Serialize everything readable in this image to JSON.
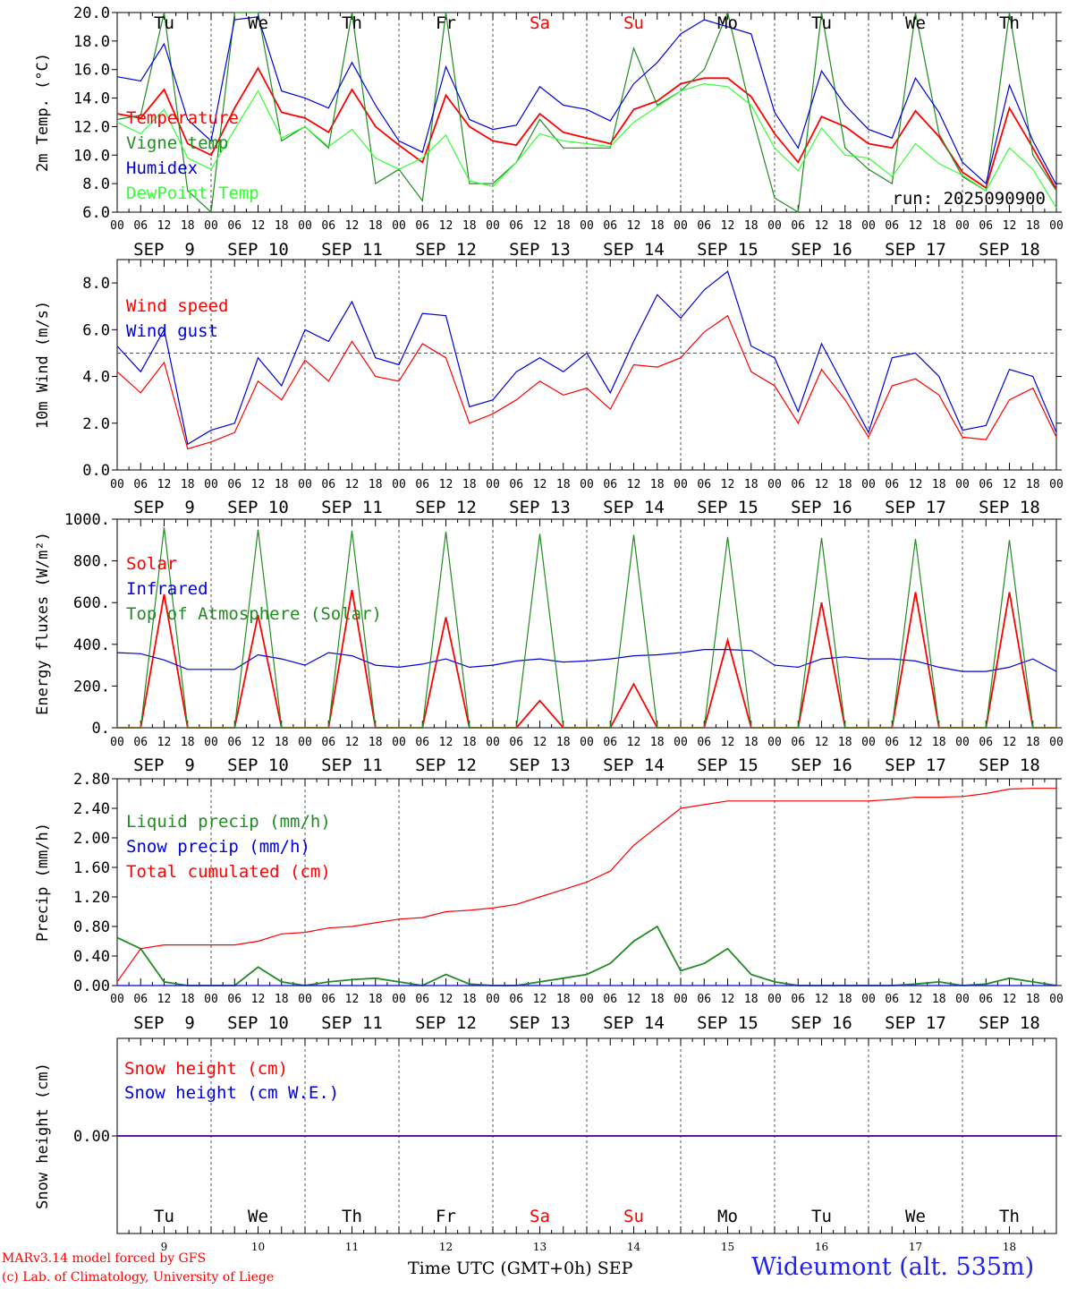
{
  "chart_data": [
    {
      "type": "line",
      "ylabel": "2m Temp. (°C)",
      "ylim": [
        6.0,
        20.0
      ],
      "yticks": [
        "6.0",
        "8.0",
        "10.0",
        "12.0",
        "14.0",
        "16.0",
        "18.0",
        "20.0"
      ],
      "annotation": "run: 2025090900",
      "x_hours": [
        0,
        6,
        12,
        18,
        24,
        30,
        36,
        42,
        48,
        54,
        60,
        66,
        72,
        78,
        84,
        90,
        96,
        102,
        108,
        114,
        120,
        126,
        132,
        138,
        144,
        150,
        156,
        162,
        168,
        174,
        180,
        186,
        192,
        198,
        204,
        210,
        216,
        222,
        228,
        234,
        240
      ],
      "series": [
        {
          "name": "Temperature",
          "color": "#ff0000",
          "values": [
            12.9,
            12.6,
            14.6,
            10.8,
            10.0,
            13.3,
            16.1,
            13.0,
            12.6,
            11.6,
            14.6,
            12.0,
            10.7,
            9.5,
            14.2,
            12.0,
            11.0,
            10.7,
            12.9,
            11.6,
            11.2,
            10.8,
            13.2,
            13.8,
            15.0,
            15.4,
            15.4,
            14.1,
            11.5,
            9.5,
            12.7,
            12.0,
            10.8,
            10.5,
            13.1,
            11.3,
            8.8,
            7.7,
            13.3,
            10.5,
            7.6
          ]
        },
        {
          "name": "Vigne temp",
          "color": "#228b22",
          "values": [
            12.5,
            12.8,
            21.0,
            7.5,
            6.0,
            20.5,
            20.5,
            11.0,
            12.0,
            10.5,
            20.5,
            8.0,
            9.0,
            6.8,
            20.5,
            8.0,
            8.0,
            9.5,
            12.5,
            10.5,
            10.5,
            10.5,
            17.5,
            13.5,
            14.5,
            16.0,
            20.0,
            13.0,
            7.0,
            5.5,
            20.5,
            10.5,
            9.0,
            8.0,
            20.5,
            11.5,
            8.5,
            7.5,
            20.5,
            10.0,
            7.5
          ]
        },
        {
          "name": "Humidex",
          "color": "#0000dd",
          "values": [
            15.5,
            15.2,
            17.8,
            12.5,
            11.0,
            19.5,
            19.7,
            14.5,
            14.0,
            13.3,
            16.5,
            13.5,
            11.0,
            10.2,
            16.2,
            12.5,
            11.8,
            12.1,
            14.8,
            13.5,
            13.2,
            12.4,
            15.0,
            16.5,
            18.5,
            19.5,
            19.0,
            18.5,
            13.0,
            10.5,
            15.9,
            13.5,
            11.8,
            11.2,
            15.4,
            13.0,
            9.5,
            8.0,
            14.9,
            11.0,
            7.9
          ]
        },
        {
          "name": "DewPoint Temp",
          "color": "#33ff33",
          "values": [
            12.3,
            11.5,
            13.2,
            9.8,
            9.0,
            11.8,
            14.5,
            11.2,
            12.0,
            10.6,
            11.8,
            9.8,
            9.0,
            9.8,
            11.4,
            8.2,
            7.8,
            9.5,
            11.5,
            11.0,
            10.8,
            10.6,
            12.3,
            13.4,
            14.5,
            15.0,
            14.8,
            13.5,
            10.5,
            8.9,
            11.9,
            10.0,
            9.8,
            8.5,
            10.8,
            9.4,
            8.6,
            7.5,
            10.5,
            9.0,
            6.3
          ]
        }
      ],
      "day_names": [
        "Tu",
        "We",
        "Th",
        "Fr",
        "Sa",
        "Su",
        "Mo",
        "Tu",
        "We",
        "Th"
      ],
      "day_name_colors": [
        "#000",
        "#000",
        "#000",
        "#000",
        "#ff0000",
        "#ff0000",
        "#000",
        "#000",
        "#000",
        "#000"
      ]
    },
    {
      "type": "line",
      "ylabel": "10m Wind (m/s)",
      "ylim": [
        0.0,
        9.0
      ],
      "yticks": [
        "0.0",
        "2.0",
        "4.0",
        "6.0",
        "8.0"
      ],
      "reference_line": 5.0,
      "x_hours": [
        0,
        6,
        12,
        18,
        24,
        30,
        36,
        42,
        48,
        54,
        60,
        66,
        72,
        78,
        84,
        90,
        96,
        102,
        108,
        114,
        120,
        126,
        132,
        138,
        144,
        150,
        156,
        162,
        168,
        174,
        180,
        186,
        192,
        198,
        204,
        210,
        216,
        222,
        228,
        234,
        240
      ],
      "series": [
        {
          "name": "Wind speed",
          "color": "#ff0000",
          "values": [
            4.2,
            3.3,
            4.6,
            0.9,
            1.2,
            1.6,
            3.8,
            3.0,
            4.7,
            3.8,
            5.5,
            4.0,
            3.8,
            5.4,
            4.8,
            2.0,
            2.4,
            3.0,
            3.8,
            3.2,
            3.5,
            2.6,
            4.5,
            4.4,
            4.8,
            5.9,
            6.6,
            4.2,
            3.6,
            2.0,
            4.3,
            3.0,
            1.4,
            3.6,
            3.9,
            3.2,
            1.4,
            1.3,
            3.0,
            3.5,
            1.4
          ]
        },
        {
          "name": "Wind gust",
          "color": "#0000dd",
          "values": [
            5.3,
            4.2,
            6.0,
            1.1,
            1.7,
            2.0,
            4.8,
            3.6,
            6.0,
            5.5,
            7.2,
            4.8,
            4.5,
            6.7,
            6.6,
            2.7,
            3.0,
            4.2,
            4.8,
            4.2,
            5.0,
            3.3,
            5.5,
            7.5,
            6.5,
            7.7,
            8.5,
            5.3,
            4.8,
            2.5,
            5.4,
            3.5,
            1.6,
            4.8,
            5.0,
            4.0,
            1.7,
            1.9,
            4.3,
            4.0,
            1.6
          ]
        }
      ],
      "day_names": [],
      "day_name_colors": []
    },
    {
      "type": "line",
      "ylabel": "Energy fluxes (W/m²)",
      "ylim": [
        0,
        1000
      ],
      "yticks": [
        "0.",
        "200.",
        "400.",
        "600.",
        "800.",
        "1000."
      ],
      "x_hours": [
        0,
        6,
        12,
        18,
        24,
        30,
        36,
        42,
        48,
        54,
        60,
        66,
        72,
        78,
        84,
        90,
        96,
        102,
        108,
        114,
        120,
        126,
        132,
        138,
        144,
        150,
        156,
        162,
        168,
        174,
        180,
        186,
        192,
        198,
        204,
        210,
        216,
        222,
        228,
        234,
        240
      ],
      "series": [
        {
          "name": "Solar",
          "color": "#ff0000",
          "values": [
            0,
            0,
            640,
            0,
            0,
            0,
            540,
            0,
            0,
            0,
            660,
            0,
            0,
            0,
            530,
            0,
            0,
            0,
            130,
            0,
            0,
            0,
            210,
            0,
            0,
            0,
            420,
            0,
            0,
            0,
            600,
            0,
            0,
            0,
            650,
            0,
            0,
            0,
            650,
            0,
            0
          ]
        },
        {
          "name": "Infrared",
          "color": "#0000dd",
          "values": [
            360,
            355,
            325,
            280,
            280,
            280,
            350,
            330,
            300,
            360,
            345,
            300,
            290,
            305,
            330,
            290,
            300,
            320,
            330,
            315,
            320,
            330,
            345,
            350,
            360,
            375,
            375,
            370,
            300,
            290,
            330,
            340,
            330,
            330,
            320,
            290,
            270,
            270,
            290,
            330,
            270
          ]
        },
        {
          "name": "Top of Atmosphere (Solar)",
          "color": "#228b22",
          "values": [
            0,
            0,
            960,
            0,
            0,
            0,
            950,
            0,
            0,
            0,
            945,
            0,
            0,
            0,
            940,
            0,
            0,
            0,
            930,
            0,
            0,
            0,
            925,
            0,
            0,
            0,
            915,
            0,
            0,
            0,
            910,
            0,
            0,
            0,
            905,
            0,
            0,
            0,
            900,
            0,
            0
          ]
        }
      ],
      "day_names": [],
      "day_name_colors": []
    },
    {
      "type": "line",
      "ylabel": "Precip (mm/h)",
      "ylim": [
        0.0,
        2.8
      ],
      "yticks": [
        "0.00",
        "0.40",
        "0.80",
        "1.20",
        "1.60",
        "2.00",
        "2.40",
        "2.80"
      ],
      "x_hours": [
        0,
        6,
        12,
        18,
        24,
        30,
        36,
        42,
        48,
        54,
        60,
        66,
        72,
        78,
        84,
        90,
        96,
        102,
        108,
        114,
        120,
        126,
        132,
        138,
        144,
        150,
        156,
        162,
        168,
        174,
        180,
        186,
        192,
        198,
        204,
        210,
        216,
        222,
        228,
        234,
        240
      ],
      "series": [
        {
          "name": "Liquid precip (mm/h)",
          "color": "#228b22",
          "values": [
            0.65,
            0.5,
            0.05,
            0.0,
            0.0,
            0.0,
            0.25,
            0.05,
            0.0,
            0.05,
            0.08,
            0.1,
            0.05,
            0.0,
            0.15,
            0.02,
            0.0,
            0.0,
            0.05,
            0.1,
            0.15,
            0.3,
            0.6,
            0.8,
            0.2,
            0.3,
            0.5,
            0.15,
            0.05,
            0.0,
            0.0,
            0.0,
            0.0,
            0.0,
            0.02,
            0.05,
            0.0,
            0.02,
            0.1,
            0.05,
            0.0
          ]
        },
        {
          "name": "Snow precip (mm/h)",
          "color": "#0000dd",
          "values": [
            0,
            0,
            0,
            0,
            0,
            0,
            0,
            0,
            0,
            0,
            0,
            0,
            0,
            0,
            0,
            0,
            0,
            0,
            0,
            0,
            0,
            0,
            0,
            0,
            0,
            0,
            0,
            0,
            0,
            0,
            0,
            0,
            0,
            0,
            0,
            0,
            0,
            0,
            0,
            0,
            0
          ]
        },
        {
          "name": "Total cumulated (cm)",
          "color": "#ff0000",
          "values": [
            0.05,
            0.5,
            0.55,
            0.55,
            0.55,
            0.55,
            0.6,
            0.7,
            0.72,
            0.78,
            0.8,
            0.85,
            0.9,
            0.92,
            1.0,
            1.02,
            1.05,
            1.1,
            1.2,
            1.3,
            1.4,
            1.55,
            1.9,
            2.15,
            2.4,
            2.45,
            2.5,
            2.5,
            2.5,
            2.5,
            2.5,
            2.5,
            2.5,
            2.52,
            2.55,
            2.55,
            2.56,
            2.6,
            2.66,
            2.67,
            2.67
          ]
        }
      ],
      "day_names": [],
      "day_name_colors": []
    },
    {
      "type": "line",
      "ylabel": "Snow height (cm)",
      "ylim": [
        -1,
        1
      ],
      "yticks": [
        "0.00"
      ],
      "x_hours": [
        0,
        240
      ],
      "series": [
        {
          "name": "Snow height (cm)",
          "color": "#ff0000",
          "values": [
            0,
            0
          ]
        },
        {
          "name": "Snow height (cm W.E.)",
          "color": "#0000dd",
          "values": [
            0,
            0
          ]
        }
      ],
      "day_names": [
        "Tu",
        "We",
        "Th",
        "Fr",
        "Sa",
        "Su",
        "Mo",
        "Tu",
        "We",
        "Th"
      ],
      "day_name_colors": [
        "#000",
        "#000",
        "#000",
        "#000",
        "#ff0000",
        "#ff0000",
        "#000",
        "#000",
        "#000",
        "#000"
      ],
      "day_numbers": [
        "9",
        "10",
        "11",
        "12",
        "13",
        "14",
        "15",
        "16",
        "17",
        "18"
      ]
    }
  ],
  "hour_tick_labels": [
    "00",
    "06",
    "12",
    "18"
  ],
  "final_hour_label": "00",
  "date_labels": [
    "SEP  9",
    "SEP 10",
    "SEP 11",
    "SEP 12",
    "SEP 13",
    "SEP 14",
    "SEP 15",
    "SEP 16",
    "SEP 17",
    "SEP 18"
  ],
  "footer": {
    "credit_line1": "MARv3.14 model forced by GFS",
    "credit_line2": "(c) Lab. of Climatology, University of Liege",
    "x_axis_label": "Time UTC (GMT+0h) SEP",
    "station": "Wideumont (alt. 535m)"
  },
  "colors": {
    "red": "#ff0000",
    "green": "#228b22",
    "light_green": "#33ff33",
    "blue": "#0000dd",
    "station_blue": "#2222ee"
  }
}
